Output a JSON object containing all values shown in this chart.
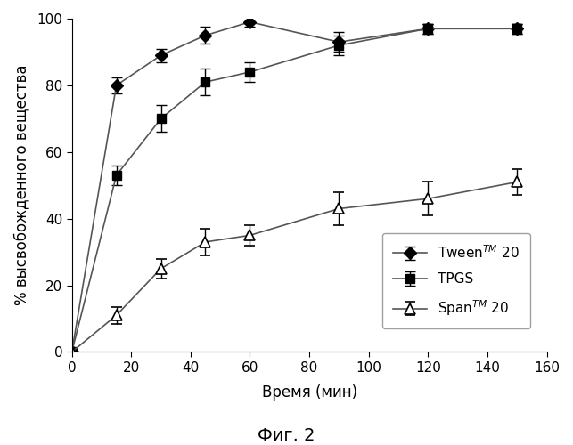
{
  "tween_x": [
    0,
    15,
    30,
    45,
    60,
    90,
    120,
    150
  ],
  "tween_y": [
    0,
    80,
    89,
    95,
    99,
    93,
    97,
    97
  ],
  "tween_yerr": [
    0,
    2.5,
    2,
    2.5,
    1.5,
    3,
    1.5,
    1.5
  ],
  "tpgs_x": [
    0,
    15,
    30,
    45,
    60,
    90,
    120,
    150
  ],
  "tpgs_y": [
    0,
    53,
    70,
    81,
    84,
    92,
    97,
    97
  ],
  "tpgs_yerr": [
    0,
    3,
    4,
    4,
    3,
    3,
    1.5,
    1.5
  ],
  "span_x": [
    0,
    15,
    30,
    45,
    60,
    90,
    120,
    150
  ],
  "span_y": [
    0,
    11,
    25,
    33,
    35,
    43,
    46,
    51
  ],
  "span_yerr": [
    0,
    2.5,
    3,
    4,
    3,
    5,
    5,
    4
  ],
  "xlabel": "Время (мин)",
  "ylabel": "% высвобожденного вещества",
  "xlim": [
    0,
    160
  ],
  "ylim": [
    0,
    100
  ],
  "xticks": [
    0,
    20,
    40,
    60,
    80,
    100,
    120,
    140,
    160
  ],
  "yticks": [
    0,
    20,
    40,
    60,
    80,
    100
  ],
  "legend_tween": "Tween$^{TM}$ 20",
  "legend_tpgs": "TPGS",
  "legend_span": "Span$^{TM}$ 20",
  "caption": "Фиг. 2",
  "line_color": "#555555",
  "marker_color": "#000000",
  "background_color": "#ffffff",
  "label_fontsize": 12,
  "legend_fontsize": 11,
  "tick_fontsize": 11,
  "caption_fontsize": 14
}
